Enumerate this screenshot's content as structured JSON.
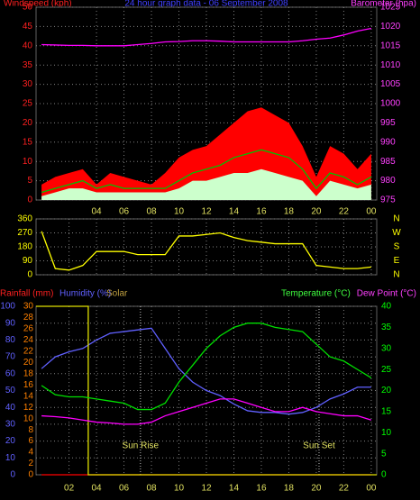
{
  "chart_data": [
    {
      "type": "line",
      "title": "24 hour graph data - 06 September 2008",
      "ylabel": "Windspeed (kph)",
      "y2label": "Barometer (hpa)",
      "x": [
        0,
        1,
        2,
        3,
        4,
        5,
        6,
        7,
        8,
        9,
        10,
        11,
        12,
        13,
        14,
        15,
        16,
        17,
        18,
        19,
        20,
        21,
        22,
        23,
        24
      ],
      "xlim": [
        -0.4,
        24.4
      ],
      "xticks": [
        {
          "value": 4,
          "label": "04"
        },
        {
          "value": 6,
          "label": "06"
        },
        {
          "value": 8,
          "label": "08"
        },
        {
          "value": 10,
          "label": "10"
        },
        12,
        14,
        16,
        18,
        20,
        22,
        {
          "value": 24,
          "label": "00"
        }
      ],
      "ylim": [
        0,
        50
      ],
      "yticks": [
        0,
        5,
        10,
        15,
        20,
        25,
        30,
        35,
        40,
        45,
        50
      ],
      "ycolor": "#ff2020",
      "y2lim": [
        975,
        1025
      ],
      "y2ticks": [
        975,
        980,
        985,
        990,
        995,
        1000,
        1005,
        1010,
        1015,
        1020,
        1025
      ],
      "y2color": "#ff40ff",
      "grid": true,
      "series": [
        {
          "color": "#ff0000",
          "style": "area",
          "axis": "y",
          "values": [
            4,
            6,
            7,
            8,
            4,
            7,
            6,
            5,
            4,
            7,
            11,
            13,
            14,
            17,
            20,
            23,
            24,
            22,
            20,
            14,
            6,
            14,
            12,
            8,
            12
          ]
        },
        {
          "color": "#ccffcc",
          "style": "area",
          "axis": "y",
          "values": [
            1,
            2,
            3,
            3,
            2,
            2,
            2,
            2,
            2,
            2,
            3,
            5,
            5,
            6,
            7,
            7,
            8,
            7,
            6,
            5,
            1,
            5,
            4,
            3,
            4
          ]
        },
        {
          "color": "#00c000",
          "style": "line",
          "axis": "y",
          "values": [
            2,
            3,
            4,
            5,
            3,
            4,
            3,
            3,
            3,
            3,
            5,
            7,
            8,
            9,
            11,
            12,
            13,
            12,
            11,
            8,
            3,
            7,
            6,
            4,
            6
          ]
        },
        {
          "color": "#ff00ff",
          "style": "line",
          "axis": "y2",
          "values": [
            1015.3,
            1015.2,
            1015.1,
            1015.1,
            1015,
            1015,
            1015,
            1015.3,
            1015.6,
            1016,
            1016.1,
            1016.3,
            1016.3,
            1016.2,
            1016,
            1016,
            1016,
            1016,
            1016,
            1016.3,
            1016.7,
            1017,
            1017.8,
            1018.8,
            1019.5
          ]
        }
      ]
    },
    {
      "type": "line",
      "x": [
        0,
        1,
        2,
        3,
        4,
        5,
        6,
        7,
        8,
        9,
        10,
        11,
        12,
        13,
        14,
        15,
        16,
        17,
        18,
        19,
        20,
        21,
        22,
        23,
        24
      ],
      "xlim": [
        -0.4,
        24.4
      ],
      "xticks": [
        2,
        4,
        6,
        8,
        10,
        12,
        14,
        16,
        18,
        20,
        22,
        24
      ],
      "xtick_labels": false,
      "ylim": [
        0,
        360
      ],
      "yticks": [
        0,
        90,
        180,
        270,
        360
      ],
      "ycolor": "#ffff00",
      "y2lim": [
        0,
        360
      ],
      "y2ticks": [
        {
          "value": 360,
          "label": "N"
        },
        {
          "value": 270,
          "label": "W"
        },
        {
          "value": 180,
          "label": "S"
        },
        {
          "value": 90,
          "label": "E"
        },
        {
          "value": 0,
          "label": "N"
        }
      ],
      "y2color": "#ffff00",
      "grid": true,
      "series": [
        {
          "color": "#ffff00",
          "style": "line",
          "axis": "y",
          "values": [
            280,
            40,
            30,
            60,
            150,
            150,
            150,
            130,
            130,
            130,
            250,
            250,
            260,
            270,
            240,
            220,
            210,
            200,
            200,
            200,
            60,
            50,
            40,
            40,
            50
          ]
        }
      ]
    },
    {
      "type": "line",
      "x": [
        0,
        1,
        2,
        3,
        4,
        5,
        6,
        7,
        8,
        9,
        10,
        11,
        12,
        13,
        14,
        15,
        16,
        17,
        18,
        19,
        20,
        21,
        22,
        23,
        24
      ],
      "xlim": [
        -0.4,
        24.4
      ],
      "xticks": [
        {
          "value": 2,
          "label": "02"
        },
        {
          "value": 4,
          "label": "04"
        },
        {
          "value": 6,
          "label": "06"
        },
        {
          "value": 8,
          "label": "08"
        },
        10,
        12,
        14,
        16,
        18,
        20,
        22,
        {
          "value": 24,
          "label": "00"
        }
      ],
      "ylim": [
        0,
        100
      ],
      "yticks": [
        0,
        10,
        20,
        30,
        40,
        50,
        60,
        70,
        80,
        90,
        100
      ],
      "ycolor": "#6060ff",
      "y2lim": [
        0,
        40
      ],
      "y2ticks": [
        0,
        5,
        10,
        15,
        20,
        25,
        30,
        35,
        40
      ],
      "y2color": "#00ff00",
      "y3lim": [
        0,
        30
      ],
      "y3ticks": [
        0,
        2,
        4,
        6,
        8,
        10,
        12,
        14,
        16,
        18,
        20,
        22,
        24,
        26,
        28,
        30
      ],
      "y3color": "#ff8000",
      "grid": true,
      "annotations": [
        {
          "text": "Sun Rise",
          "x": 7.2
        },
        {
          "text": "Sun Set",
          "x": 20.2
        }
      ],
      "series": [
        {
          "name": "Rainfall (mm)",
          "color": "#ff0000",
          "style": "line",
          "axis": "y3",
          "values": [
            0,
            0,
            0,
            0,
            0,
            0,
            0,
            0,
            0,
            0,
            0,
            0,
            0,
            0,
            0,
            0,
            0,
            0,
            0,
            0,
            0,
            0,
            0,
            0,
            0
          ]
        },
        {
          "name": "Humidity (%)",
          "color": "#6060ff",
          "style": "line",
          "axis": "y",
          "values": [
            63,
            70,
            73,
            75,
            80,
            84,
            85,
            86,
            87,
            75,
            63,
            55,
            50,
            47,
            42,
            38,
            37,
            37,
            36,
            37,
            40,
            45,
            48,
            52,
            52
          ]
        },
        {
          "name": "Solar",
          "color": "#e0e000",
          "style": "line",
          "axis": "y",
          "x": [
            -0.4,
            3.4,
            3.4,
            24.4
          ],
          "values": [
            100,
            100,
            0,
            0
          ]
        },
        {
          "name": "Temperature (°C)",
          "color": "#00e000",
          "style": "line",
          "axis": "y2",
          "values": [
            21.2,
            19,
            18.5,
            18.5,
            18,
            17.5,
            17,
            15.5,
            15.5,
            17,
            22,
            26,
            30,
            33,
            35,
            36,
            36,
            35,
            34.5,
            34,
            31,
            28,
            27,
            25,
            23
          ]
        },
        {
          "name": "Dew Point (°C)",
          "color": "#ff00ff",
          "style": "line",
          "axis": "y2",
          "values": [
            14,
            13.8,
            13.5,
            13,
            12.5,
            12.3,
            12,
            12,
            12.5,
            14,
            15,
            16,
            17,
            18,
            18,
            17,
            16,
            15,
            15,
            16,
            15,
            14.5,
            14,
            14,
            13
          ]
        }
      ]
    }
  ]
}
